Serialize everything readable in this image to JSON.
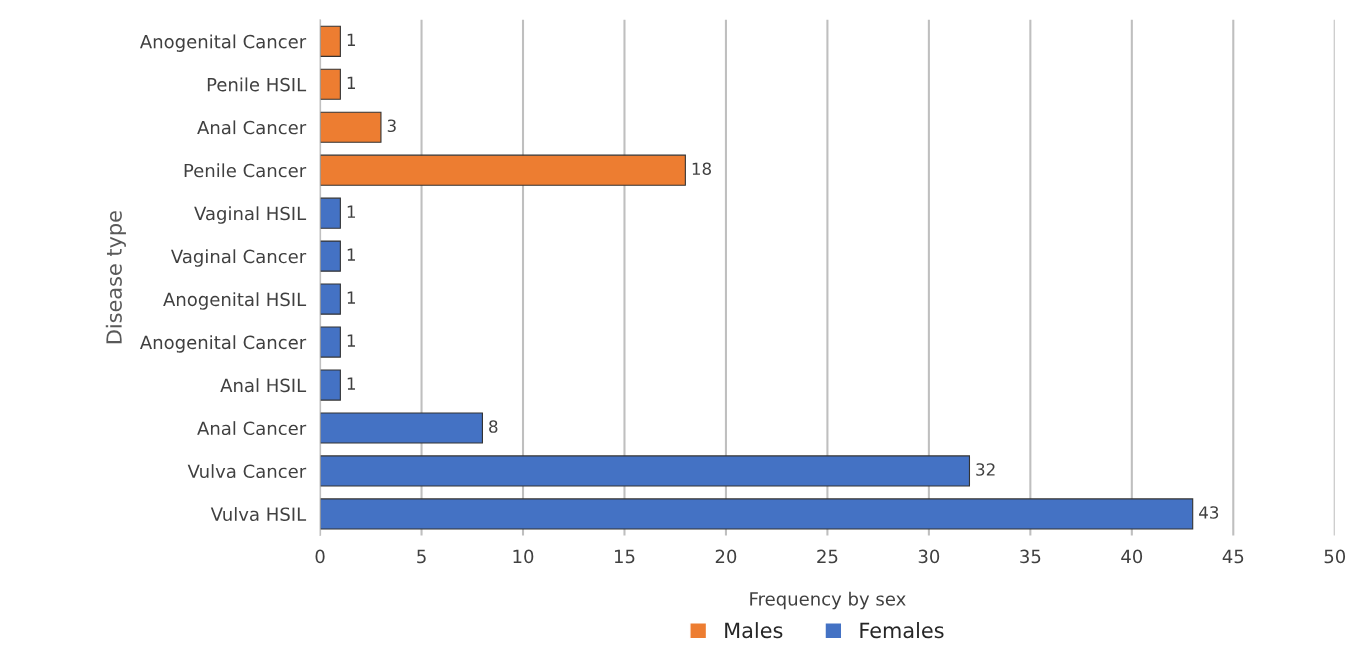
{
  "chart_data": {
    "type": "bar",
    "orientation": "horizontal",
    "xlabel": "Frequency by sex",
    "ylabel": "Disease type",
    "categories": [
      "Anogenital Cancer",
      "Penile HSIL",
      "Anal Cancer",
      "Penile Cancer",
      "Vaginal HSIL",
      "Vaginal Cancer",
      "Anogenital HSIL",
      "Anogenital Cancer",
      "Anal HSIL",
      "Anal Cancer",
      "Vulva Cancer",
      "Vulva HSIL"
    ],
    "series": [
      {
        "name": "Males",
        "color": "#ed7d31",
        "values": [
          1,
          1,
          3,
          18,
          null,
          null,
          null,
          null,
          null,
          null,
          null,
          null
        ]
      },
      {
        "name": "Females",
        "color": "#4472c4",
        "values": [
          null,
          null,
          null,
          null,
          1,
          1,
          1,
          1,
          1,
          8,
          32,
          43
        ]
      }
    ],
    "xlim": [
      0,
      50
    ],
    "xticks": [
      0,
      5,
      10,
      15,
      20,
      25,
      30,
      35,
      40,
      45,
      50
    ],
    "data_labels": true,
    "grid": "x",
    "legend": "bottom"
  }
}
